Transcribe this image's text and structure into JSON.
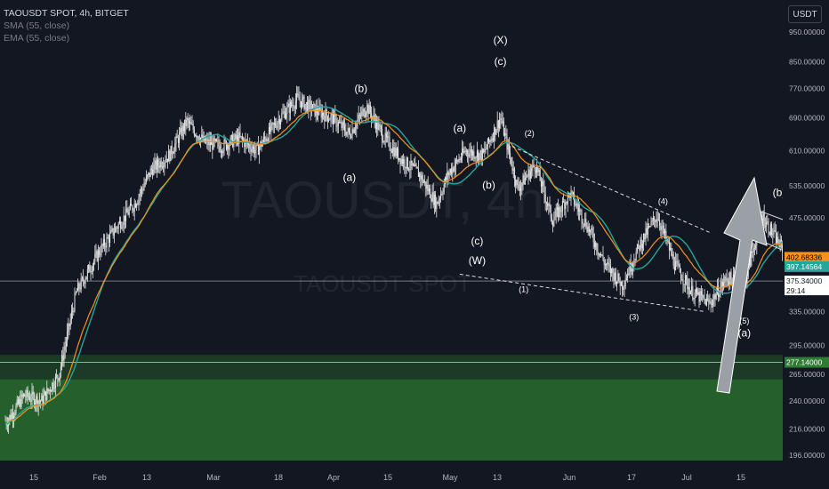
{
  "header": {
    "symbol_line": "TAOUSDT SPOT, 4h, BITGET",
    "indicator_1": "SMA (55, close)",
    "indicator_2": "EMA (55, close)",
    "currency_button": "USDT"
  },
  "watermark": {
    "main": "TAOUSDT, 4h",
    "sub": "TAOUSDT SPOT"
  },
  "colors": {
    "background": "#131722",
    "candle": "#e6e6e6",
    "sma": "#26a69a",
    "ema": "#f7931a",
    "support_zone": "#2e7d32",
    "projection": "#ffffff",
    "big_arrow": "#9aa0a6"
  },
  "chart_data": {
    "type": "candlestick",
    "title": "TAOUSDT SPOT, 4h, BITGET",
    "y_scale": "log",
    "ylim": [
      190,
      1000
    ],
    "y_ticks": [
      "950.00000",
      "850.00000",
      "770.00000",
      "690.00000",
      "610.00000",
      "535.00000",
      "475.00000",
      "335.00000",
      "295.00000",
      "265.00000",
      "240.00000",
      "216.00000",
      "196.00000"
    ],
    "x_ticks": [
      "15",
      "Feb",
      "13",
      "Mar",
      "18",
      "Apr",
      "15",
      "May",
      "13",
      "Jun",
      "17",
      "Jul",
      "15"
    ],
    "price_labels": {
      "ema": "402.68336",
      "sma": "397.14564",
      "last": "375.34000",
      "countdown": "29:14",
      "support": "277.14000"
    },
    "price_trajectory": [
      {
        "t": "Jan 07",
        "p": 230
      },
      {
        "t": "Jan 10",
        "p": 255
      },
      {
        "t": "Jan 13",
        "p": 235
      },
      {
        "t": "Jan 16",
        "p": 222
      },
      {
        "t": "Jan 19",
        "p": 245
      },
      {
        "t": "Jan 22",
        "p": 240
      },
      {
        "t": "Jan 25",
        "p": 265
      },
      {
        "t": "Jan 28",
        "p": 360
      },
      {
        "t": "Feb 01",
        "p": 420
      },
      {
        "t": "Feb 04",
        "p": 460
      },
      {
        "t": "Feb 07",
        "p": 500
      },
      {
        "t": "Feb 10",
        "p": 570
      },
      {
        "t": "Feb 13",
        "p": 600
      },
      {
        "t": "Feb 16",
        "p": 680
      },
      {
        "t": "Feb 19",
        "p": 630
      },
      {
        "t": "Feb 22",
        "p": 620
      },
      {
        "t": "Feb 25",
        "p": 640
      },
      {
        "t": "Feb 28",
        "p": 610
      },
      {
        "t": "Mar 03",
        "p": 690
      },
      {
        "t": "Mar 06",
        "p": 740
      },
      {
        "t": "Mar 09",
        "p": 710
      },
      {
        "t": "Mar 12",
        "p": 690
      },
      {
        "t": "Mar 15",
        "p": 650
      },
      {
        "t": "Mar 18",
        "p": 720
      },
      {
        "t": "Mar 21",
        "p": 640
      },
      {
        "t": "Mar 24",
        "p": 590
      },
      {
        "t": "Mar 27",
        "p": 560
      },
      {
        "t": "Mar 30",
        "p": 500
      },
      {
        "t": "Apr 01",
        "p": 560
      },
      {
        "t": "Apr 04",
        "p": 610
      },
      {
        "t": "Apr 07",
        "p": 600
      },
      {
        "t": "Apr 10",
        "p": 690
      },
      {
        "t": "Apr 13",
        "p": 530
      },
      {
        "t": "Apr 16",
        "p": 580
      },
      {
        "t": "Apr 19",
        "p": 470
      },
      {
        "t": "Apr 22",
        "p": 520
      },
      {
        "t": "Apr 25",
        "p": 460
      },
      {
        "t": "Apr 28",
        "p": 400
      },
      {
        "t": "May 01",
        "p": 370
      },
      {
        "t": "May 04",
        "p": 430
      },
      {
        "t": "May 07",
        "p": 480
      },
      {
        "t": "May 10",
        "p": 400
      },
      {
        "t": "May 13",
        "p": 360
      },
      {
        "t": "May 16",
        "p": 345
      },
      {
        "t": "May 19",
        "p": 380
      },
      {
        "t": "May 22",
        "p": 370
      },
      {
        "t": "May 25",
        "p": 480
      },
      {
        "t": "May 28",
        "p": 430
      },
      {
        "t": "May 31",
        "p": 400
      },
      {
        "t": "Jun 03",
        "p": 380
      },
      {
        "t": "Jun 06",
        "p": 440
      },
      {
        "t": "Jun 08",
        "p": 375
      }
    ],
    "trendlines": [
      {
        "name": "channel-top",
        "from": {
          "t": "May 24",
          "p": 490
        },
        "to": {
          "t": "Jun 26",
          "p": 375
        }
      },
      {
        "name": "channel-mid",
        "from": {
          "t": "May 29",
          "p": 440
        },
        "to": {
          "t": "Jun 26",
          "p": 345
        }
      },
      {
        "name": "channel-bottom",
        "from": {
          "t": "May 24",
          "p": 440
        },
        "to": {
          "t": "Jun 26",
          "p": 320
        }
      },
      {
        "name": "wedge-top",
        "from": {
          "t": "Apr 12",
          "p": 620
        },
        "to": {
          "t": "May 16",
          "p": 450
        }
      },
      {
        "name": "wedge-bottom",
        "from": {
          "t": "Apr 03",
          "p": 385
        },
        "to": {
          "t": "May 15",
          "p": 335
        }
      }
    ],
    "projection_path": [
      {
        "t": "Jun 08",
        "p": 385
      },
      {
        "t": "Jun 13",
        "p": 285
      },
      {
        "t": "Jun 22",
        "p": 325
      },
      {
        "t": "Jun 29",
        "p": 255
      },
      {
        "t": "Jul 07",
        "p": 540
      }
    ],
    "support_zone": {
      "outer": [
        190,
        285
      ],
      "inner": [
        190,
        260
      ]
    },
    "wave_labels": [
      {
        "text": "(X)",
        "t": "Apr 10",
        "p": 910
      },
      {
        "text": "(c)",
        "t": "Apr 10",
        "p": 840
      },
      {
        "text": "(b)",
        "t": "Mar 17",
        "p": 760
      },
      {
        "text": "(a)",
        "t": "Apr 03",
        "p": 655
      },
      {
        "text": "(a)",
        "t": "Mar 15",
        "p": 545
      },
      {
        "text": "(b)",
        "t": "Apr 08",
        "p": 530
      },
      {
        "text": "(c)",
        "t": "Apr 06",
        "p": 430
      },
      {
        "text": "(W)",
        "t": "Apr 06",
        "p": 400
      },
      {
        "text": "(2)",
        "t": "Apr 15",
        "p": 645
      },
      {
        "text": "(1)",
        "t": "Apr 14",
        "p": 360
      },
      {
        "text": "(4)",
        "t": "May 08",
        "p": 500
      },
      {
        "text": "(3)",
        "t": "May 03",
        "p": 325
      },
      {
        "text": "(5)",
        "t": "May 22",
        "p": 320
      },
      {
        "text": "(a)",
        "t": "May 22",
        "p": 305
      },
      {
        "text": "(b)",
        "t": "May 28",
        "p": 515
      },
      {
        "text": "(2)",
        "t": "Jun 05",
        "p": 455
      },
      {
        "text": "(1)",
        "t": "Jun 04",
        "p": 340
      },
      {
        "text": "(4)",
        "t": "Jun 21",
        "p": 325
      },
      {
        "text": "(3)",
        "t": "Jun 13",
        "p": 265
      },
      {
        "text": "(5)",
        "t": "Jul 07",
        "p": 243
      },
      {
        "text": "(c)",
        "t": "Jul 07",
        "p": 230
      },
      {
        "text": "(Y)",
        "t": "Jul 07",
        "p": 214
      }
    ]
  }
}
